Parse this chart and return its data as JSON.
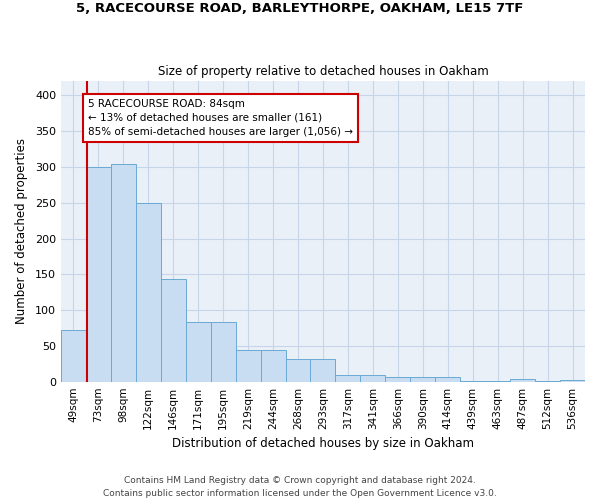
{
  "title": "5, RACECOURSE ROAD, BARLEYTHORPE, OAKHAM, LE15 7TF",
  "subtitle": "Size of property relative to detached houses in Oakham",
  "xlabel": "Distribution of detached houses by size in Oakham",
  "ylabel": "Number of detached properties",
  "footer_line1": "Contains HM Land Registry data © Crown copyright and database right 2024.",
  "footer_line2": "Contains public sector information licensed under the Open Government Licence v3.0.",
  "categories": [
    "49sqm",
    "73sqm",
    "98sqm",
    "122sqm",
    "146sqm",
    "171sqm",
    "195sqm",
    "219sqm",
    "244sqm",
    "268sqm",
    "293sqm",
    "317sqm",
    "341sqm",
    "366sqm",
    "390sqm",
    "414sqm",
    "439sqm",
    "463sqm",
    "487sqm",
    "512sqm",
    "536sqm"
  ],
  "values": [
    72,
    300,
    304,
    249,
    144,
    83,
    83,
    44,
    44,
    31,
    31,
    9,
    9,
    6,
    6,
    6,
    1,
    1,
    4,
    1,
    3
  ],
  "bar_color": "#c9ddf2",
  "bar_edge_color": "#6aaad4",
  "grid_color": "#c8d4e8",
  "background_color": "#eaf0f8",
  "vline_x": 0.54,
  "vline_color": "#cc0000",
  "annotation_text": "5 RACECOURSE ROAD: 84sqm\n← 13% of detached houses are smaller (161)\n85% of semi-detached houses are larger (1,056) →",
  "annotation_box_color": "#cc0000",
  "ylim": [
    0,
    420
  ],
  "yticks": [
    0,
    50,
    100,
    150,
    200,
    250,
    300,
    350,
    400
  ]
}
